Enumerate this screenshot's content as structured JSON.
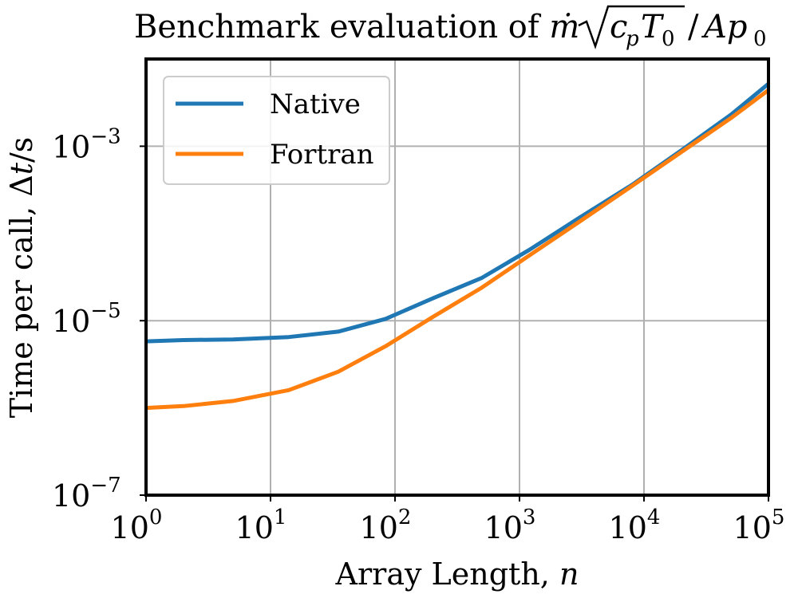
{
  "chart_data": {
    "type": "line",
    "title": "Benchmark evaluation of ṁ√(c_pT_0)/Ap_0",
    "xlabel": "Array Length, n",
    "ylabel": "Time per call, Δt/s",
    "xscale": "log",
    "yscale": "log",
    "xlim": [
      1,
      100000
    ],
    "ylim": [
      1e-07,
      0.01
    ],
    "xticks": [
      {
        "value": 1,
        "base": "10",
        "exp": "0"
      },
      {
        "value": 10,
        "base": "10",
        "exp": "1"
      },
      {
        "value": 100,
        "base": "10",
        "exp": "2"
      },
      {
        "value": 1000,
        "base": "10",
        "exp": "3"
      },
      {
        "value": 10000,
        "base": "10",
        "exp": "4"
      },
      {
        "value": 100000,
        "base": "10",
        "exp": "5"
      }
    ],
    "yticks": [
      {
        "value": 1e-07,
        "base": "10",
        "exp": "−7"
      },
      {
        "value": 1e-05,
        "base": "10",
        "exp": "−5"
      },
      {
        "value": 0.001,
        "base": "10",
        "exp": "−3"
      }
    ],
    "grid": true,
    "legend_position": "top-left",
    "series": [
      {
        "name": "Native",
        "color": "#1f77b4",
        "x": [
          1,
          2,
          5,
          14,
          35,
          84,
          200,
          500,
          1200,
          3000,
          8000,
          20000,
          50000,
          100000
        ],
        "y": [
          5.8e-06,
          6e-06,
          6.1e-06,
          6.5e-06,
          7.5e-06,
          1.05e-05,
          1.8e-05,
          3.1e-05,
          6.5e-05,
          0.00015,
          0.00036,
          0.0009,
          0.0023,
          0.0052
        ]
      },
      {
        "name": "Fortran",
        "color": "#ff7f0e",
        "x": [
          1,
          2,
          5,
          14,
          35,
          84,
          200,
          500,
          1200,
          3000,
          8000,
          20000,
          50000,
          100000
        ],
        "y": [
          1e-06,
          1.05e-06,
          1.2e-06,
          1.6e-06,
          2.6e-06,
          5.1e-06,
          1.1e-05,
          2.4e-05,
          5.6e-05,
          0.000135,
          0.00035,
          0.00086,
          0.0021,
          0.0044
        ]
      }
    ]
  }
}
